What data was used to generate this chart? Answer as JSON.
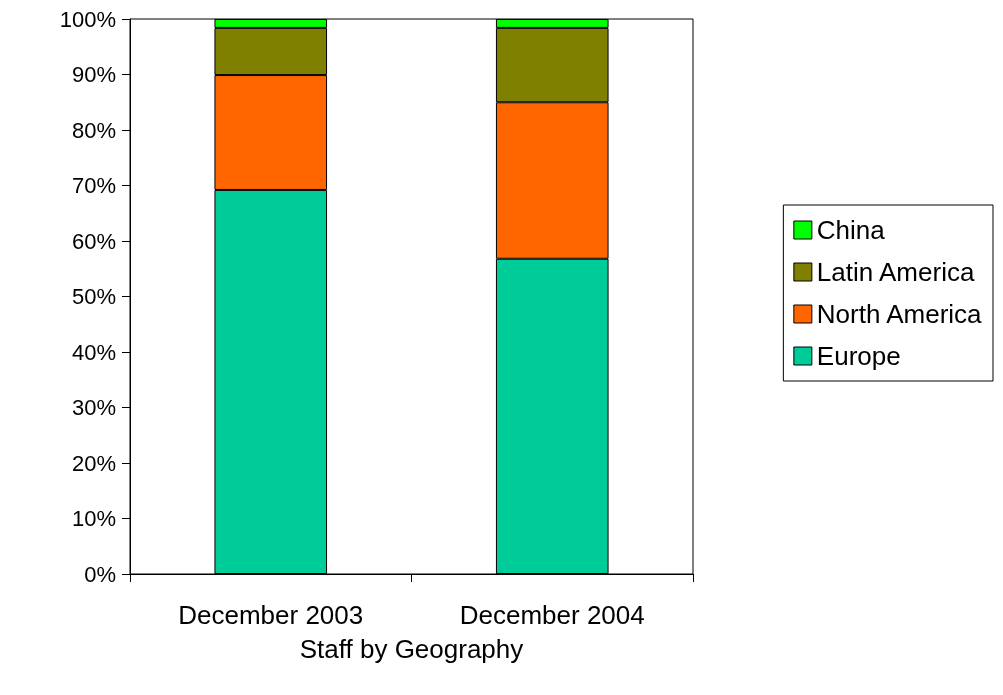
{
  "chart_data": {
    "type": "bar",
    "stacked": true,
    "xlabel": "Staff by Geography",
    "categories": [
      "December 2003",
      "December 2004"
    ],
    "series": [
      {
        "name": "Europe",
        "color": "#00cc99",
        "values": [
          69.2,
          56.8
        ]
      },
      {
        "name": "North America",
        "color": "#ff6600",
        "values": [
          20.7,
          28.2
        ]
      },
      {
        "name": "Latin America",
        "color": "#808000",
        "values": [
          8.5,
          13.4
        ]
      },
      {
        "name": "China",
        "color": "#00ff00",
        "values": [
          1.6,
          1.6
        ]
      }
    ],
    "ylim": [
      0,
      100
    ],
    "yticks": [
      {
        "value": 0,
        "label": "0%"
      },
      {
        "value": 10,
        "label": "10%"
      },
      {
        "value": 20,
        "label": "20%"
      },
      {
        "value": 30,
        "label": "30%"
      },
      {
        "value": 40,
        "label": "40%"
      },
      {
        "value": 50,
        "label": "50%"
      },
      {
        "value": 60,
        "label": "60%"
      },
      {
        "value": 70,
        "label": "70%"
      },
      {
        "value": 80,
        "label": "80%"
      },
      {
        "value": 90,
        "label": "90%"
      },
      {
        "value": 100,
        "label": "100%"
      }
    ],
    "grid": false,
    "legend": "right"
  }
}
